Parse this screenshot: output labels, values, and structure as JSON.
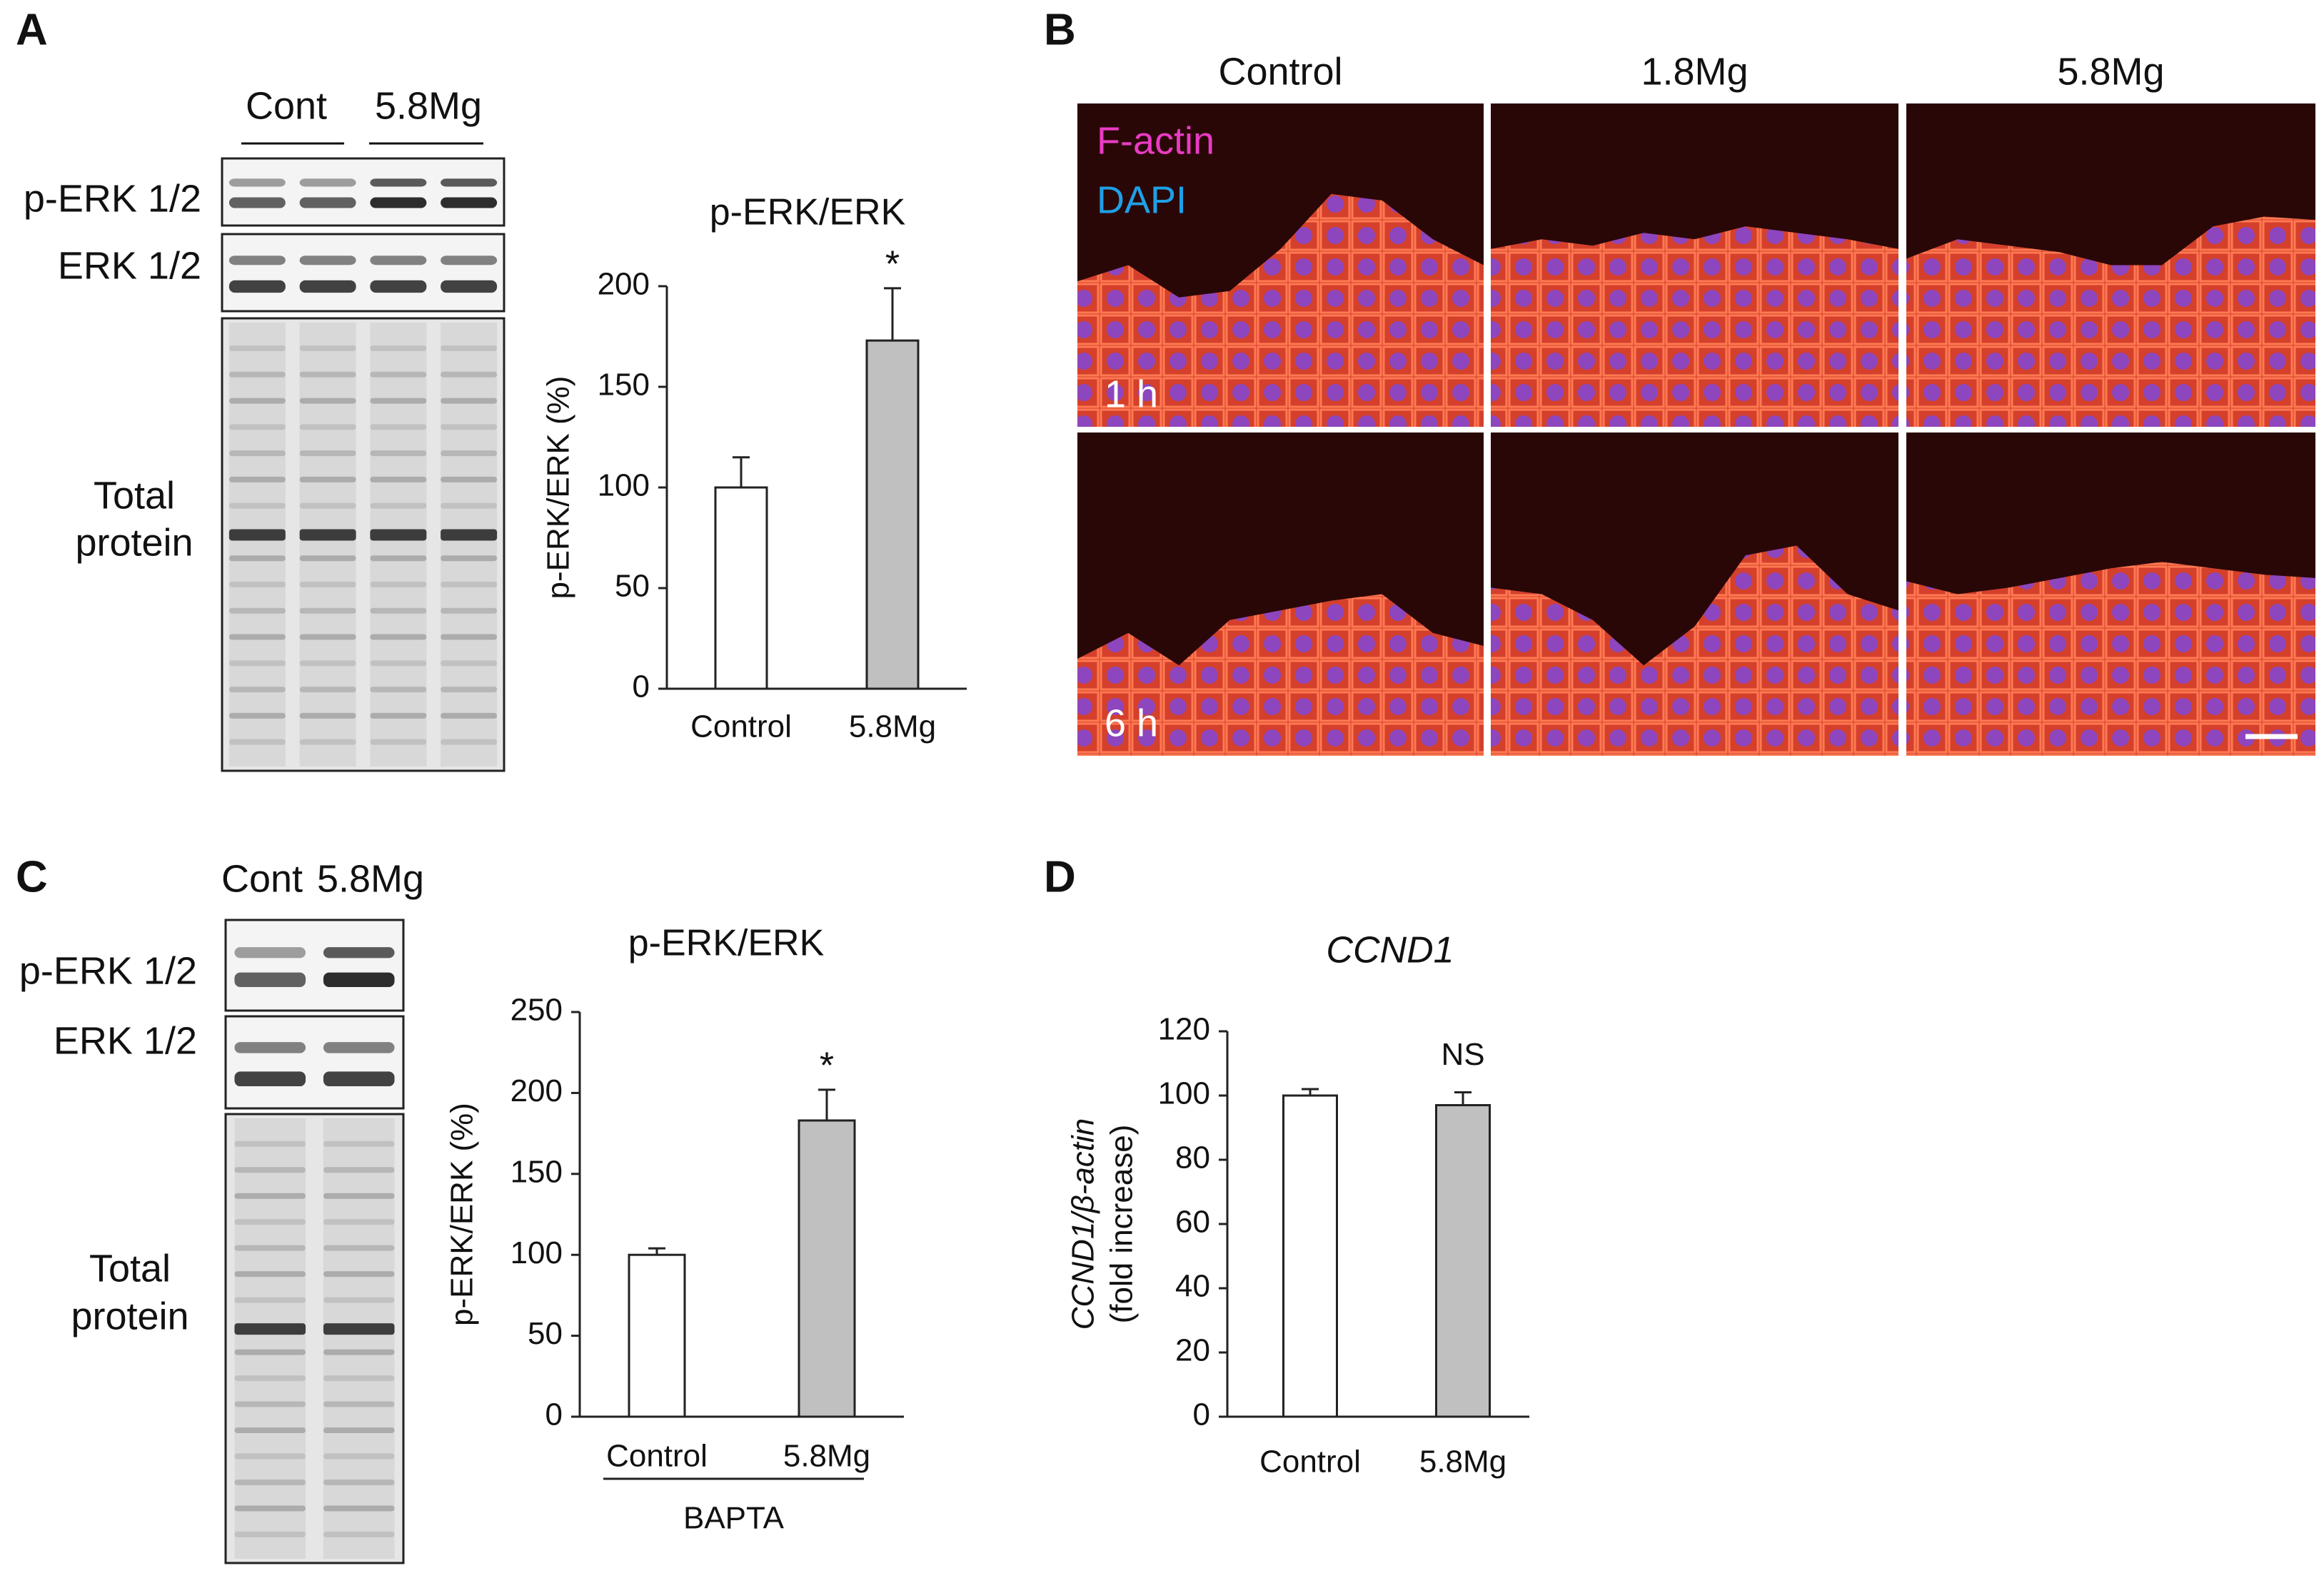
{
  "panels": {
    "a": "A",
    "b": "B",
    "c": "C",
    "d": "D"
  },
  "blot_a": {
    "groups": [
      "Cont",
      "5.8Mg"
    ],
    "rows": [
      "p-ERK 1/2",
      "ERK 1/2"
    ],
    "total": [
      "Total",
      "protein"
    ]
  },
  "blot_c": {
    "groups": [
      "Cont",
      "5.8Mg"
    ],
    "rows": [
      "p-ERK 1/2",
      "ERK 1/2"
    ],
    "total": [
      "Total",
      "protein"
    ]
  },
  "images_b": {
    "columns": [
      "Control",
      "1.8Mg",
      "5.8Mg"
    ],
    "rows": [
      "1 h",
      "6 h"
    ],
    "stains": [
      {
        "name": "F-actin",
        "color": "#e83cc4"
      },
      {
        "name": "DAPI",
        "color": "#1ea0e6"
      }
    ]
  },
  "chart_data": [
    {
      "type": "bar",
      "title": "p-ERK/ERK",
      "ylabel": [
        "p-ERK/ERK (%)"
      ],
      "categories": [
        "Control",
        "5.8Mg"
      ],
      "values": [
        100,
        173
      ],
      "errors": [
        15,
        26
      ],
      "colors": [
        "#ffffff",
        "#c0c0c0"
      ],
      "significance": [
        null,
        "*"
      ],
      "ylim": [
        0,
        200
      ],
      "yticks": [
        0,
        50,
        100,
        150,
        200
      ]
    },
    {
      "type": "bar",
      "title": "p-ERK/ERK",
      "ylabel": [
        "p-ERK/ERK (%)"
      ],
      "categories": [
        "Control",
        "5.8Mg"
      ],
      "values": [
        100,
        183
      ],
      "errors": [
        4,
        19
      ],
      "colors": [
        "#ffffff",
        "#c0c0c0"
      ],
      "significance": [
        null,
        "*"
      ],
      "group_label": "BAPTA",
      "ylim": [
        0,
        250
      ],
      "yticks": [
        0,
        50,
        100,
        150,
        200,
        250
      ]
    },
    {
      "type": "bar",
      "title": "CCND1",
      "ylabel": [
        "CCND1/β-actin",
        "(fold increase)"
      ],
      "categories": [
        "Control",
        "5.8Mg"
      ],
      "values": [
        100,
        97
      ],
      "errors": [
        2,
        4
      ],
      "colors": [
        "#ffffff",
        "#c0c0c0"
      ],
      "significance": [
        null,
        "NS"
      ],
      "ylim": [
        0,
        120
      ],
      "yticks": [
        0,
        20,
        40,
        60,
        80,
        100,
        120
      ]
    }
  ]
}
